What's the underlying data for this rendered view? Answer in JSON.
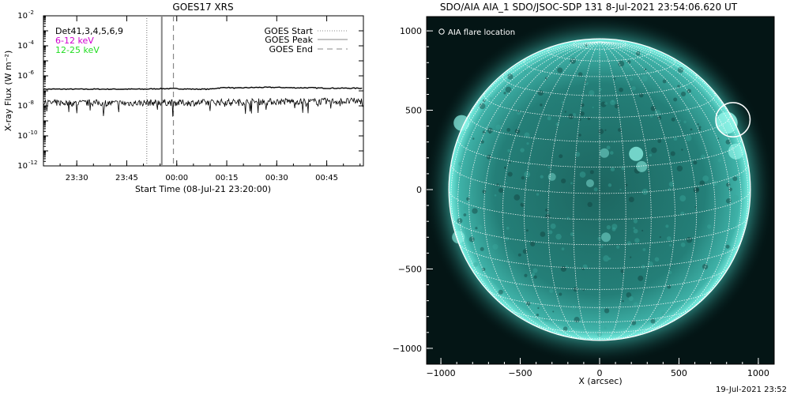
{
  "footer": {
    "timestamp": "19-Jul-2021 23:52"
  },
  "chart_data": [
    {
      "type": "line",
      "title": "GOES17 XRS",
      "xlabel": "Start Time (08-Jul-21 23:20:00)",
      "ylabel": "X-ray Flux (W m⁻²)",
      "x_tick_labels": [
        "23:30",
        "23:45",
        "00:00",
        "00:15",
        "00:30",
        "00:45"
      ],
      "x_tick_minutes": [
        10,
        25,
        40,
        55,
        70,
        85
      ],
      "xlim_minutes": [
        0,
        96
      ],
      "yscale": "log",
      "ylim": [
        1e-12,
        0.01
      ],
      "y_tick_exponents": [
        -12,
        -10,
        -8,
        -6,
        -4,
        -2
      ],
      "channels_text": "Det41,3,4,5,6,9",
      "series": [
        {
          "name": "6-12 keV",
          "name_color": "#d000d0",
          "line_color": "#000000",
          "x": [
            0,
            5,
            10,
            15,
            20,
            25,
            30,
            35,
            40,
            45,
            50,
            52,
            55,
            58,
            60,
            65,
            70,
            75,
            80,
            85,
            90,
            96
          ],
          "y": [
            1.3e-07,
            1.3e-07,
            1.3e-07,
            1.3e-07,
            1.3e-07,
            1.3e-07,
            1.3e-07,
            1.4e-07,
            1.4e-07,
            1.3e-07,
            1.3e-07,
            1.5e-07,
            1.7e-07,
            1.5e-07,
            1.6e-07,
            1.7e-07,
            1.7e-07,
            1.6e-07,
            1.6e-07,
            1.5e-07,
            1.5e-07,
            1.5e-07
          ]
        },
        {
          "name": "12-25 keV",
          "name_color": "#22dd22",
          "line_color": "#000000",
          "x": [
            0,
            5,
            10,
            15,
            20,
            25,
            30,
            35,
            40,
            45,
            50,
            55,
            60,
            65,
            70,
            75,
            80,
            85,
            90,
            96
          ],
          "y": [
            1.5e-08,
            1.6e-08,
            1.5e-08,
            1.6e-08,
            1.5e-08,
            1.5e-08,
            1.6e-08,
            1.7e-08,
            1.6e-08,
            1.6e-08,
            1.7e-08,
            1.8e-08,
            1.8e-08,
            1.9e-08,
            1.9e-08,
            2e-08,
            1.9e-08,
            2e-08,
            2e-08,
            2.1e-08
          ]
        }
      ],
      "markers": [
        {
          "name": "GOES Start",
          "x": 31,
          "style": "dotted",
          "color": "#888888"
        },
        {
          "name": "GOES Peak",
          "x": 35.5,
          "style": "solid",
          "color": "#888888"
        },
        {
          "name": "GOES End",
          "x": 39,
          "style": "dashed",
          "color": "#888888"
        }
      ],
      "legend_placement": "top-right"
    },
    {
      "type": "image",
      "title": "SDO/AIA AIA_1 SDO/JSOC-SDP 131  8-Jul-2021 23:54:06.620 UT",
      "xlabel": "X (arcsec)",
      "ylabel": "",
      "xlim": [
        -1090,
        1100
      ],
      "ylim": [
        -1100,
        1090
      ],
      "x_ticks": [
        -1000,
        -500,
        0,
        500,
        1000
      ],
      "x_tick_labels": [
        "−1000",
        "−500",
        "0",
        "500",
        "1000"
      ],
      "y_ticks": [
        -1000,
        -500,
        0,
        500,
        1000
      ],
      "y_tick_labels": [
        "−1000",
        "−500",
        "0",
        "500",
        "1000"
      ],
      "legend_label": "AIA flare location",
      "solar_disk": {
        "center": [
          0,
          0
        ],
        "radius_arcsec": 950,
        "grid_step_deg": 10
      },
      "flare_location": {
        "x": 840,
        "y": 440,
        "radius_arcsec": 80
      },
      "colors": {
        "background": "#010a0a",
        "disk": "#2a8f88",
        "limb": "#66ede0",
        "grid": "#ffffff",
        "circle": "#ffffff"
      }
    }
  ]
}
